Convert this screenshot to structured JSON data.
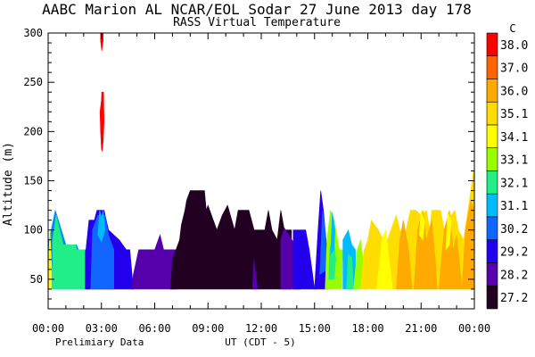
{
  "chart_data": {
    "type": "heatmap",
    "title": "AABC Marion AL  NCAR/EOL Sodar  27 June 2013  day 178",
    "subtitle": "RASS Virtual Temperature",
    "ylabel": "Altitude (m)",
    "xlabel": "UT  (CDT - 5)",
    "footnote": "Prelimiary Data",
    "colorbar_unit": "C",
    "grid": false,
    "xlim": [
      0,
      24
    ],
    "ylim": [
      20,
      300
    ],
    "x_ticks": [
      {
        "value": 0,
        "label": "00:00"
      },
      {
        "value": 3,
        "label": "03:00"
      },
      {
        "value": 6,
        "label": "06:00"
      },
      {
        "value": 9,
        "label": "09:00"
      },
      {
        "value": 12,
        "label": "12:00"
      },
      {
        "value": 15,
        "label": "15:00"
      },
      {
        "value": 18,
        "label": "18:00"
      },
      {
        "value": 21,
        "label": "21:00"
      },
      {
        "value": 24,
        "label": "00:00"
      }
    ],
    "y_ticks": [
      {
        "value": 50,
        "label": "50"
      },
      {
        "value": 100,
        "label": "100"
      },
      {
        "value": 150,
        "label": "150"
      },
      {
        "value": 200,
        "label": "200"
      },
      {
        "value": 250,
        "label": "250"
      },
      {
        "value": 300,
        "label": "300"
      }
    ],
    "colorbar": [
      {
        "label": "38.0",
        "color": "#ff0000"
      },
      {
        "label": "37.0",
        "color": "#ff6400"
      },
      {
        "label": "36.0",
        "color": "#ffaa00"
      },
      {
        "label": "35.1",
        "color": "#ffdd00"
      },
      {
        "label": "34.1",
        "color": "#ffff00"
      },
      {
        "label": "33.1",
        "color": "#99ff00"
      },
      {
        "label": "32.1",
        "color": "#22ee88"
      },
      {
        "label": "31.1",
        "color": "#00bbff"
      },
      {
        "label": "30.2",
        "color": "#1166ff"
      },
      {
        "label": "29.2",
        "color": "#2200ee"
      },
      {
        "label": "28.2",
        "color": "#5500aa"
      },
      {
        "label": "27.2",
        "color": "#220022"
      }
    ],
    "regions": [
      {
        "value": 30.5,
        "color": "#0088ff",
        "points": [
          [
            0,
            40
          ],
          [
            0,
            85
          ],
          [
            0.4,
            120
          ],
          [
            1.0,
            85
          ],
          [
            1.6,
            85
          ],
          [
            1.7,
            80
          ],
          [
            2.2,
            80
          ],
          [
            2.3,
            40
          ]
        ]
      },
      {
        "value": 32.1,
        "color": "#22ee88",
        "points": [
          [
            0.25,
            40
          ],
          [
            0.25,
            90
          ],
          [
            0.45,
            115
          ],
          [
            0.85,
            85
          ],
          [
            1.55,
            85
          ],
          [
            1.6,
            80
          ],
          [
            2.05,
            80
          ],
          [
            2.05,
            40
          ]
        ]
      },
      {
        "value": 34.1,
        "color": "#ffff00",
        "points": [
          [
            0,
            60
          ],
          [
            0.1,
            100
          ],
          [
            0.2,
            60
          ],
          [
            0.2,
            40
          ],
          [
            0,
            40
          ]
        ]
      },
      {
        "value": 29.2,
        "color": "#2200ee",
        "points": [
          [
            2.1,
            40
          ],
          [
            2.1,
            75
          ],
          [
            2.3,
            110
          ],
          [
            2.6,
            110
          ],
          [
            2.75,
            120
          ],
          [
            3.15,
            120
          ],
          [
            3.4,
            100
          ],
          [
            4.0,
            90
          ],
          [
            4.4,
            80
          ],
          [
            4.6,
            80
          ],
          [
            4.8,
            40
          ]
        ]
      },
      {
        "value": 30.2,
        "color": "#1166ff",
        "points": [
          [
            2.4,
            40
          ],
          [
            2.5,
            100
          ],
          [
            2.8,
            115
          ],
          [
            3.2,
            115
          ],
          [
            3.4,
            95
          ],
          [
            3.7,
            80
          ],
          [
            3.7,
            40
          ]
        ]
      },
      {
        "value": 31.1,
        "color": "#00bbff",
        "points": [
          [
            2.8,
            95
          ],
          [
            2.9,
            120
          ],
          [
            3.0,
            112
          ],
          [
            3.1,
            120
          ],
          [
            3.2,
            100
          ],
          [
            3.0,
            88
          ]
        ]
      },
      {
        "value": 28.2,
        "color": "#5500aa",
        "points": [
          [
            4.7,
            40
          ],
          [
            4.8,
            55
          ],
          [
            5.1,
            80
          ],
          [
            6.0,
            80
          ],
          [
            6.3,
            95
          ],
          [
            6.5,
            80
          ],
          [
            7.2,
            80
          ],
          [
            7.2,
            40
          ]
        ]
      },
      {
        "value": 27.2,
        "color": "#220022",
        "points": [
          [
            6.9,
            40
          ],
          [
            7.0,
            70
          ],
          [
            7.4,
            90
          ],
          [
            7.5,
            105
          ],
          [
            7.7,
            120
          ],
          [
            7.8,
            130
          ],
          [
            8.0,
            140
          ],
          [
            8.8,
            140
          ],
          [
            8.9,
            120
          ],
          [
            9.0,
            125
          ],
          [
            9.3,
            110
          ],
          [
            9.5,
            100
          ],
          [
            9.8,
            115
          ],
          [
            10.1,
            125
          ],
          [
            10.5,
            100
          ],
          [
            10.7,
            120
          ],
          [
            11.3,
            120
          ],
          [
            11.6,
            100
          ],
          [
            12.2,
            100
          ],
          [
            12.4,
            120
          ],
          [
            12.6,
            100
          ],
          [
            12.9,
            90
          ],
          [
            13.1,
            120
          ],
          [
            13.3,
            100
          ],
          [
            13.7,
            100
          ],
          [
            13.7,
            40
          ]
        ]
      },
      {
        "value": 28.2,
        "color": "#5500aa",
        "points": [
          [
            11.5,
            40
          ],
          [
            11.6,
            70
          ],
          [
            11.7,
            52
          ],
          [
            11.8,
            40
          ]
        ]
      },
      {
        "value": 28.2,
        "color": "#5500aa",
        "points": [
          [
            13.1,
            40
          ],
          [
            13.1,
            90
          ],
          [
            13.3,
            102
          ],
          [
            13.8,
            88
          ],
          [
            14.0,
            70
          ],
          [
            14.2,
            40
          ]
        ]
      },
      {
        "value": 29.2,
        "color": "#2200ee",
        "points": [
          [
            13.8,
            40
          ],
          [
            13.8,
            100
          ],
          [
            14.5,
            100
          ],
          [
            14.7,
            80
          ],
          [
            15.0,
            40
          ]
        ]
      },
      {
        "value": 29.2,
        "color": "#2200ee",
        "points": [
          [
            15.0,
            40
          ],
          [
            15.2,
            100
          ],
          [
            15.35,
            140
          ],
          [
            15.5,
            120
          ],
          [
            15.7,
            80
          ],
          [
            15.8,
            40
          ]
        ]
      },
      {
        "value": 30.2,
        "color": "#1166ff",
        "points": [
          [
            15.3,
            55
          ],
          [
            15.45,
            120
          ],
          [
            15.6,
            100
          ],
          [
            15.7,
            60
          ]
        ]
      },
      {
        "value": 33.1,
        "color": "#99ff00",
        "points": [
          [
            15.6,
            40
          ],
          [
            15.7,
            90
          ],
          [
            15.9,
            120
          ],
          [
            16.1,
            110
          ],
          [
            16.4,
            80
          ],
          [
            16.6,
            80
          ],
          [
            16.5,
            40
          ]
        ]
      },
      {
        "value": 32.1,
        "color": "#22ee88",
        "points": [
          [
            15.8,
            50
          ],
          [
            15.85,
            80
          ],
          [
            16.05,
            95
          ],
          [
            16.2,
            70
          ],
          [
            16.1,
            50
          ]
        ]
      },
      {
        "value": 31.1,
        "color": "#00bbff",
        "points": [
          [
            15.9,
            75
          ],
          [
            16.0,
            118
          ],
          [
            16.15,
            100
          ],
          [
            16.1,
            80
          ]
        ]
      },
      {
        "value": 31.1,
        "color": "#00bbff",
        "points": [
          [
            16.6,
            40
          ],
          [
            16.6,
            90
          ],
          [
            16.9,
            100
          ],
          [
            17.1,
            85
          ],
          [
            17.3,
            80
          ],
          [
            17.3,
            40
          ]
        ]
      },
      {
        "value": 32.1,
        "color": "#22ee88",
        "points": [
          [
            16.8,
            40
          ],
          [
            16.9,
            75
          ],
          [
            17.1,
            72
          ],
          [
            17.2,
            40
          ]
        ]
      },
      {
        "value": 33.1,
        "color": "#99ff00",
        "points": [
          [
            17.2,
            40
          ],
          [
            17.4,
            80
          ],
          [
            17.6,
            90
          ],
          [
            17.8,
            60
          ],
          [
            17.9,
            40
          ]
        ]
      },
      {
        "value": 35.1,
        "color": "#ffdd00",
        "points": [
          [
            17.6,
            40
          ],
          [
            17.8,
            80
          ],
          [
            18.0,
            90
          ],
          [
            18.2,
            110
          ],
          [
            18.6,
            100
          ],
          [
            19.0,
            85
          ],
          [
            19.3,
            100
          ],
          [
            19.6,
            115
          ],
          [
            19.8,
            100
          ],
          [
            20.1,
            95
          ],
          [
            20.4,
            120
          ],
          [
            20.7,
            120
          ],
          [
            21.0,
            115
          ],
          [
            21.3,
            120
          ],
          [
            21.5,
            100
          ],
          [
            21.6,
            120
          ],
          [
            22.1,
            120
          ],
          [
            22.3,
            100
          ],
          [
            22.5,
            110
          ],
          [
            22.9,
            120
          ],
          [
            23.1,
            100
          ],
          [
            23.4,
            90
          ],
          [
            23.6,
            115
          ],
          [
            23.8,
            140
          ],
          [
            23.95,
            160
          ],
          [
            24.0,
            130
          ],
          [
            24.0,
            40
          ]
        ]
      },
      {
        "value": 34.1,
        "color": "#ffff00",
        "points": [
          [
            18.5,
            40
          ],
          [
            18.8,
            90
          ],
          [
            19.0,
            100
          ],
          [
            19.2,
            70
          ],
          [
            19.4,
            40
          ]
        ]
      },
      {
        "value": 36.0,
        "color": "#ffaa00",
        "points": [
          [
            19.6,
            40
          ],
          [
            19.8,
            90
          ],
          [
            20.0,
            110
          ],
          [
            20.3,
            80
          ],
          [
            20.5,
            40
          ]
        ]
      },
      {
        "value": 36.0,
        "color": "#ffaa00",
        "points": [
          [
            20.6,
            40
          ],
          [
            20.8,
            100
          ],
          [
            21.1,
            120
          ],
          [
            21.3,
            90
          ],
          [
            21.6,
            110
          ],
          [
            21.8,
            70
          ],
          [
            21.9,
            40
          ]
        ]
      },
      {
        "value": 36.0,
        "color": "#ffaa00",
        "points": [
          [
            22.0,
            40
          ],
          [
            22.3,
            100
          ],
          [
            22.6,
            120
          ],
          [
            22.8,
            80
          ],
          [
            23.0,
            95
          ],
          [
            23.2,
            60
          ],
          [
            23.3,
            40
          ]
        ]
      },
      {
        "value": 36.0,
        "color": "#ffaa00",
        "points": [
          [
            23.3,
            40
          ],
          [
            23.5,
            100
          ],
          [
            23.8,
            130
          ],
          [
            24.0,
            120
          ],
          [
            24.0,
            40
          ]
        ]
      },
      {
        "value": 34.1,
        "color": "#ffff00",
        "points": [
          [
            20.9,
            95
          ],
          [
            21.0,
            120
          ],
          [
            21.2,
            108
          ],
          [
            21.1,
            90
          ]
        ]
      },
      {
        "value": 34.1,
        "color": "#ffff00",
        "points": [
          [
            22.4,
            80
          ],
          [
            22.5,
            118
          ],
          [
            22.7,
            110
          ],
          [
            22.6,
            85
          ]
        ]
      },
      {
        "value": 38.0,
        "color": "#ff0000",
        "points": [
          [
            2.95,
            292
          ],
          [
            2.95,
            300
          ],
          [
            3.1,
            300
          ],
          [
            3.1,
            292
          ],
          [
            3.02,
            282
          ]
        ]
      },
      {
        "value": 38.0,
        "color": "#ff0000",
        "points": [
          [
            3.0,
            182
          ],
          [
            2.95,
            200
          ],
          [
            2.92,
            220
          ],
          [
            3.0,
            232
          ],
          [
            3.02,
            240
          ],
          [
            3.12,
            240
          ],
          [
            3.15,
            210
          ],
          [
            3.1,
            190
          ],
          [
            3.05,
            180
          ]
        ]
      }
    ]
  }
}
